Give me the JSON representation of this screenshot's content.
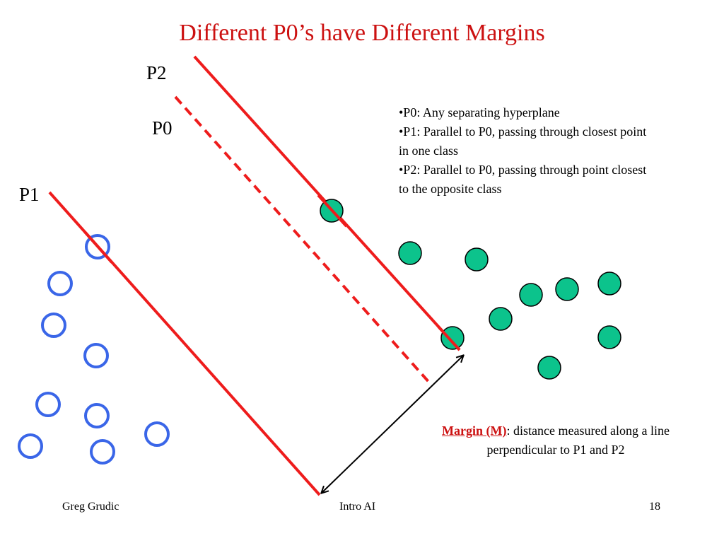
{
  "title": "Different P0’s have Different Margins",
  "labels": {
    "p2": "P2",
    "p0": "P0",
    "p1": "P1"
  },
  "bullets": [
    "•P0:  Any separating hyperplane",
    "•P1:  Parallel to P0, passing through closest point in one class",
    "•P2:  Parallel to P0, passing through point closest to the opposite class"
  ],
  "margin_note": {
    "term": "Margin (M)",
    "text": ": distance measured along a line perpendicular to P1 and P2"
  },
  "footer": {
    "left": "Greg Grudic",
    "center": "Intro AI",
    "right": "18"
  },
  "colors": {
    "title": "#cc1111",
    "lines": "#ee1c1c",
    "open_circles": "#3a66e8",
    "filled_circles": "#0cc38c",
    "arrow": "#000000"
  }
}
